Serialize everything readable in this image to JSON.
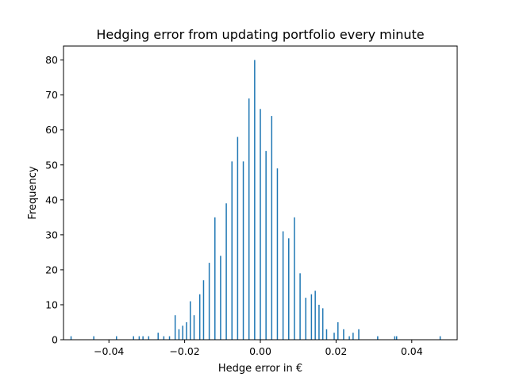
{
  "chart_data": {
    "type": "bar",
    "title": "Hedging error from updating portfolio every minute",
    "xlabel": "Hedge error in €",
    "ylabel": "Frequency",
    "xlim": [
      -0.052,
      0.052
    ],
    "ylim": [
      0,
      84
    ],
    "grid": false,
    "bar_color": "#1f77b4",
    "x_ticks": [
      {
        "value": -0.04,
        "label": "−0.04"
      },
      {
        "value": -0.02,
        "label": "−0.02"
      },
      {
        "value": 0.0,
        "label": "0.00"
      },
      {
        "value": 0.02,
        "label": "0.02"
      },
      {
        "value": 0.04,
        "label": "0.04"
      }
    ],
    "y_ticks": [
      {
        "value": 0,
        "label": "0"
      },
      {
        "value": 10,
        "label": "10"
      },
      {
        "value": 20,
        "label": "20"
      },
      {
        "value": 30,
        "label": "30"
      },
      {
        "value": 40,
        "label": "40"
      },
      {
        "value": 50,
        "label": "50"
      },
      {
        "value": 60,
        "label": "60"
      },
      {
        "value": 70,
        "label": "70"
      },
      {
        "value": 80,
        "label": "80"
      }
    ],
    "x": [
      -0.05,
      -0.044,
      -0.038,
      -0.0335,
      -0.032,
      -0.031,
      -0.0295,
      -0.027,
      -0.0255,
      -0.024,
      -0.0225,
      -0.0215,
      -0.0205,
      -0.0195,
      -0.0185,
      -0.0175,
      -0.016,
      -0.015,
      -0.0135,
      -0.012,
      -0.0105,
      -0.009,
      -0.0075,
      -0.006,
      -0.0045,
      -0.003,
      -0.0015,
      0.0,
      0.0015,
      0.003,
      0.0045,
      0.006,
      0.0075,
      0.009,
      0.0105,
      0.012,
      0.0135,
      0.0145,
      0.0155,
      0.0165,
      0.0175,
      0.0195,
      0.0205,
      0.022,
      0.0235,
      0.0245,
      0.026,
      0.031,
      0.0355,
      0.036,
      0.0475
    ],
    "values": [
      1,
      1,
      1,
      1,
      1,
      1,
      1,
      2,
      1,
      1,
      7,
      3,
      4,
      5,
      11,
      7,
      13,
      17,
      22,
      35,
      24,
      39,
      51,
      58,
      51,
      69,
      80,
      66,
      54,
      64,
      49,
      31,
      29,
      35,
      19,
      12,
      13,
      14,
      10,
      9,
      3,
      2,
      5,
      3,
      1,
      2,
      3,
      1,
      1,
      1,
      1
    ]
  }
}
